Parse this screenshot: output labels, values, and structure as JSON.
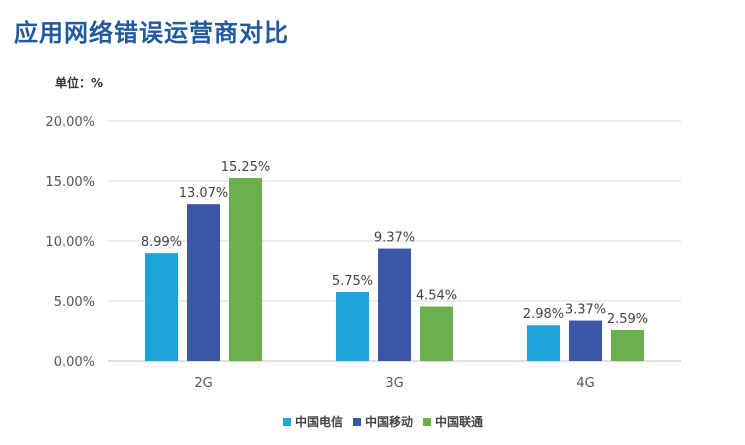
{
  "header": {
    "title": "应用网络错误运营商对比"
  },
  "chart_data": {
    "type": "bar",
    "unit_label": "单位：%",
    "categories": [
      "2G",
      "3G",
      "4G"
    ],
    "series": [
      {
        "name": "中国电信",
        "color": "#1fa3dc",
        "values": [
          8.99,
          5.75,
          2.98
        ],
        "labels": [
          "8.99%",
          "5.75%",
          "2.98%"
        ]
      },
      {
        "name": "中国移动",
        "color": "#3a56a5",
        "values": [
          13.07,
          9.37,
          3.37
        ],
        "labels": [
          "13.07%",
          "9.37%",
          "3.37%"
        ]
      },
      {
        "name": "中国联通",
        "color": "#6ab04c",
        "values": [
          15.25,
          4.54,
          2.59
        ],
        "labels": [
          "15.25%",
          "4.54%",
          "2.59%"
        ]
      }
    ],
    "yticks": [
      "0.00%",
      "5.00%",
      "10.00%",
      "15.00%",
      "20.00%"
    ],
    "ylim": [
      0,
      20
    ],
    "grid": true,
    "legend_position": "bottom-center"
  }
}
